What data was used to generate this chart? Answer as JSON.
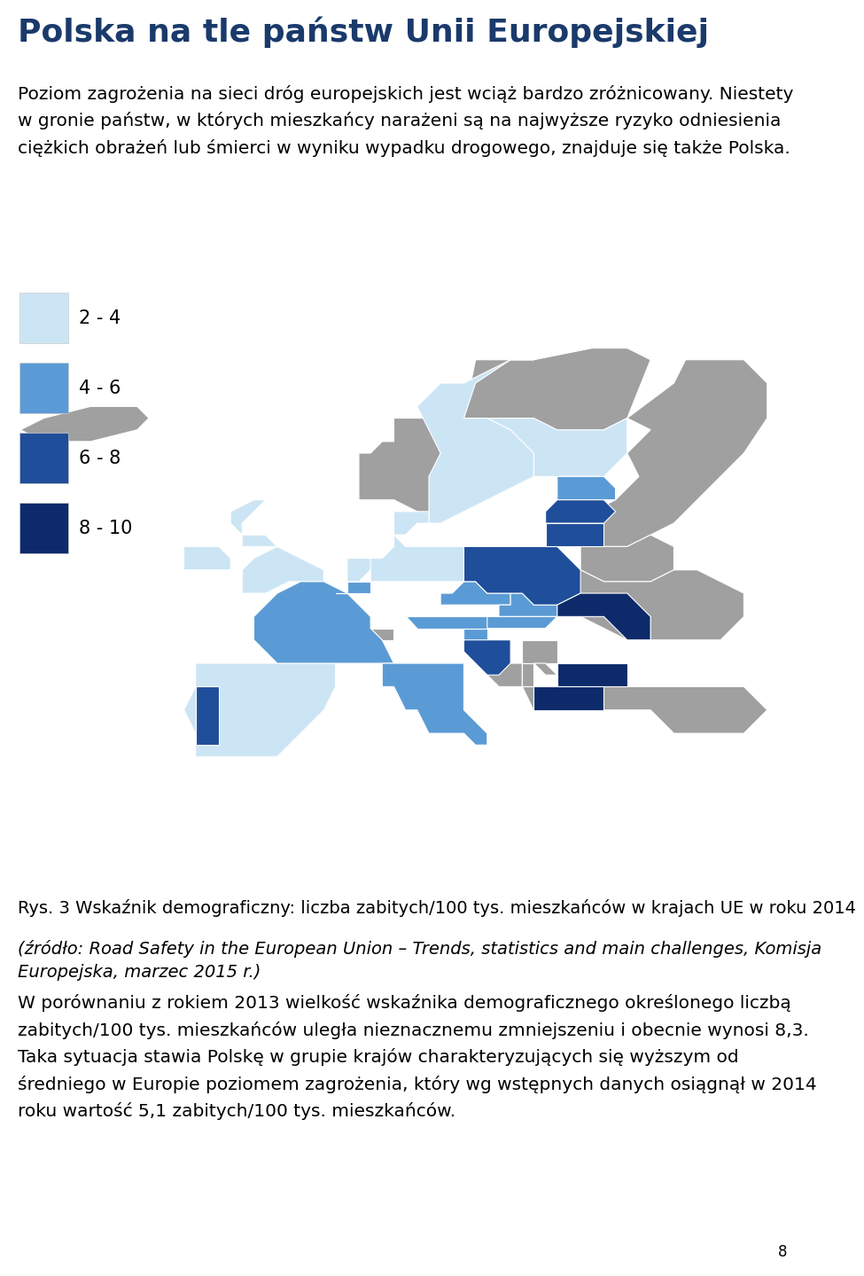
{
  "title": "Polska na tle państw Unii Europejskiej",
  "title_color": "#1a3a6b",
  "title_fontsize": 26,
  "body_fontsize": 14.5,
  "caption_fontsize": 14,
  "paragraph1": "Poziom zagrożenia na sieci dróg europejskich jest wciąż bardzo zróżnicowany. Niestety\nw gronie państw, w których mieszkańcy narażeni są na najwyższe ryzyko odniesienia\nciężkich obrażeń lub śmierci w wyniku wypadku drogowego, znajduje się także Polska.",
  "legend_items": [
    {
      "label": "2 - 4",
      "color": "#cce5f5"
    },
    {
      "label": "4 - 6",
      "color": "#5b9bd5"
    },
    {
      "label": "6 - 8",
      "color": "#1f4e9a"
    },
    {
      "label": "8 - 10",
      "color": "#0d2b6b"
    }
  ],
  "caption_line1": "Rys. 3 Wskaźnik demograficzny: liczba zabitych/100 tys. mieszkańców w krajach UE w roku 2014",
  "caption_line2": "(źródło: Road Safety in the European Union – Trends, statistics and main challenges, Komisja",
  "caption_line3": "Europejska, marzec 2015 r.)",
  "paragraph2": "W porównaniu z rokiem 2013 wielkość wskaźnika demograficznego określonego liczbą\nzabitych/100 tys. mieszkańców uległa nieznacznemu zmniejszeniu i obecnie wynosi 8,3.\nTaka sytuacja stawia Polskę w grupie krajów charakteryzujących się wyższym od\nśredniego w Europie poziomem zagrożenia, który wg wstępnych danych osiągnął w 2014\nroku wartość 5,1 zabitych/100 tys. mieszkańców.",
  "page_number": "8",
  "background_color": "#ffffff",
  "text_color": "#000000",
  "map_bg": "#ffffff",
  "non_eu_color": "#a0a0a0",
  "colors": {
    "low": "#cce5f5",
    "medium": "#5b9bd5",
    "high": "#1f4e9a",
    "very_high": "#0d2b6b"
  }
}
